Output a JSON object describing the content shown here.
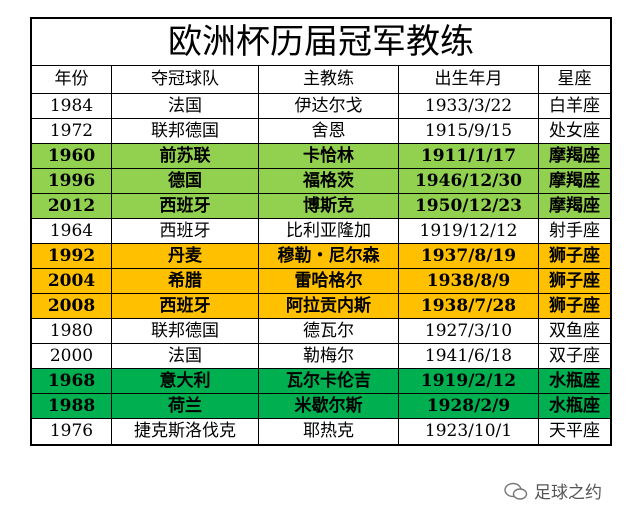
{
  "table": {
    "title": "欧洲杯历届冠军教练",
    "header": [
      "年份",
      "夺冠球队",
      "主教练",
      "出生年月",
      "星座"
    ],
    "rows": [
      {
        "cells": [
          "1984",
          "法国",
          "伊达尔戈",
          "1933/3/22",
          "白羊座"
        ],
        "color": "#ffffff"
      },
      {
        "cells": [
          "1972",
          "联邦德国",
          "舍恩",
          "1915/9/15",
          "处女座"
        ],
        "color": "#ffffff"
      },
      {
        "cells": [
          "1960",
          "前苏联",
          "卡恰林",
          "1911/1/17",
          "摩羯座"
        ],
        "color": "#92d050"
      },
      {
        "cells": [
          "1996",
          "德国",
          "福格茨",
          "1946/12/30",
          "摩羯座"
        ],
        "color": "#92d050"
      },
      {
        "cells": [
          "2012",
          "西班牙",
          "博斯克",
          "1950/12/23",
          "摩羯座"
        ],
        "color": "#92d050"
      },
      {
        "cells": [
          "1964",
          "西班牙",
          "比利亚隆加",
          "1919/12/12",
          "射手座"
        ],
        "color": "#ffffff"
      },
      {
        "cells": [
          "1992",
          "丹麦",
          "穆勒・尼尔森",
          "1937/8/19",
          "狮子座"
        ],
        "color": "#ffc000"
      },
      {
        "cells": [
          "2004",
          "希腊",
          "雷哈格尔",
          "1938/8/9",
          "狮子座"
        ],
        "color": "#ffc000"
      },
      {
        "cells": [
          "2008",
          "西班牙",
          "阿拉贡内斯",
          "1938/7/28",
          "狮子座"
        ],
        "color": "#ffc000"
      },
      {
        "cells": [
          "1980",
          "联邦德国",
          "德瓦尔",
          "1927/3/10",
          "双鱼座"
        ],
        "color": "#ffffff"
      },
      {
        "cells": [
          "2000",
          "法国",
          "勒梅尔",
          "1941/6/18",
          "双子座"
        ],
        "color": "#ffffff"
      },
      {
        "cells": [
          "1968",
          "意大利",
          "瓦尔卡伦吉",
          "1919/2/12",
          "水瓶座"
        ],
        "color": "#00b050"
      },
      {
        "cells": [
          "1988",
          "荷兰",
          "米歇尔斯",
          "1928/2/9",
          "水瓶座"
        ],
        "color": "#00b050"
      },
      {
        "cells": [
          "1976",
          "捷克斯洛伐克",
          "耶热克",
          "1923/10/1",
          "天平座"
        ],
        "color": "#ffffff"
      }
    ]
  },
  "watermark": "足球之约"
}
